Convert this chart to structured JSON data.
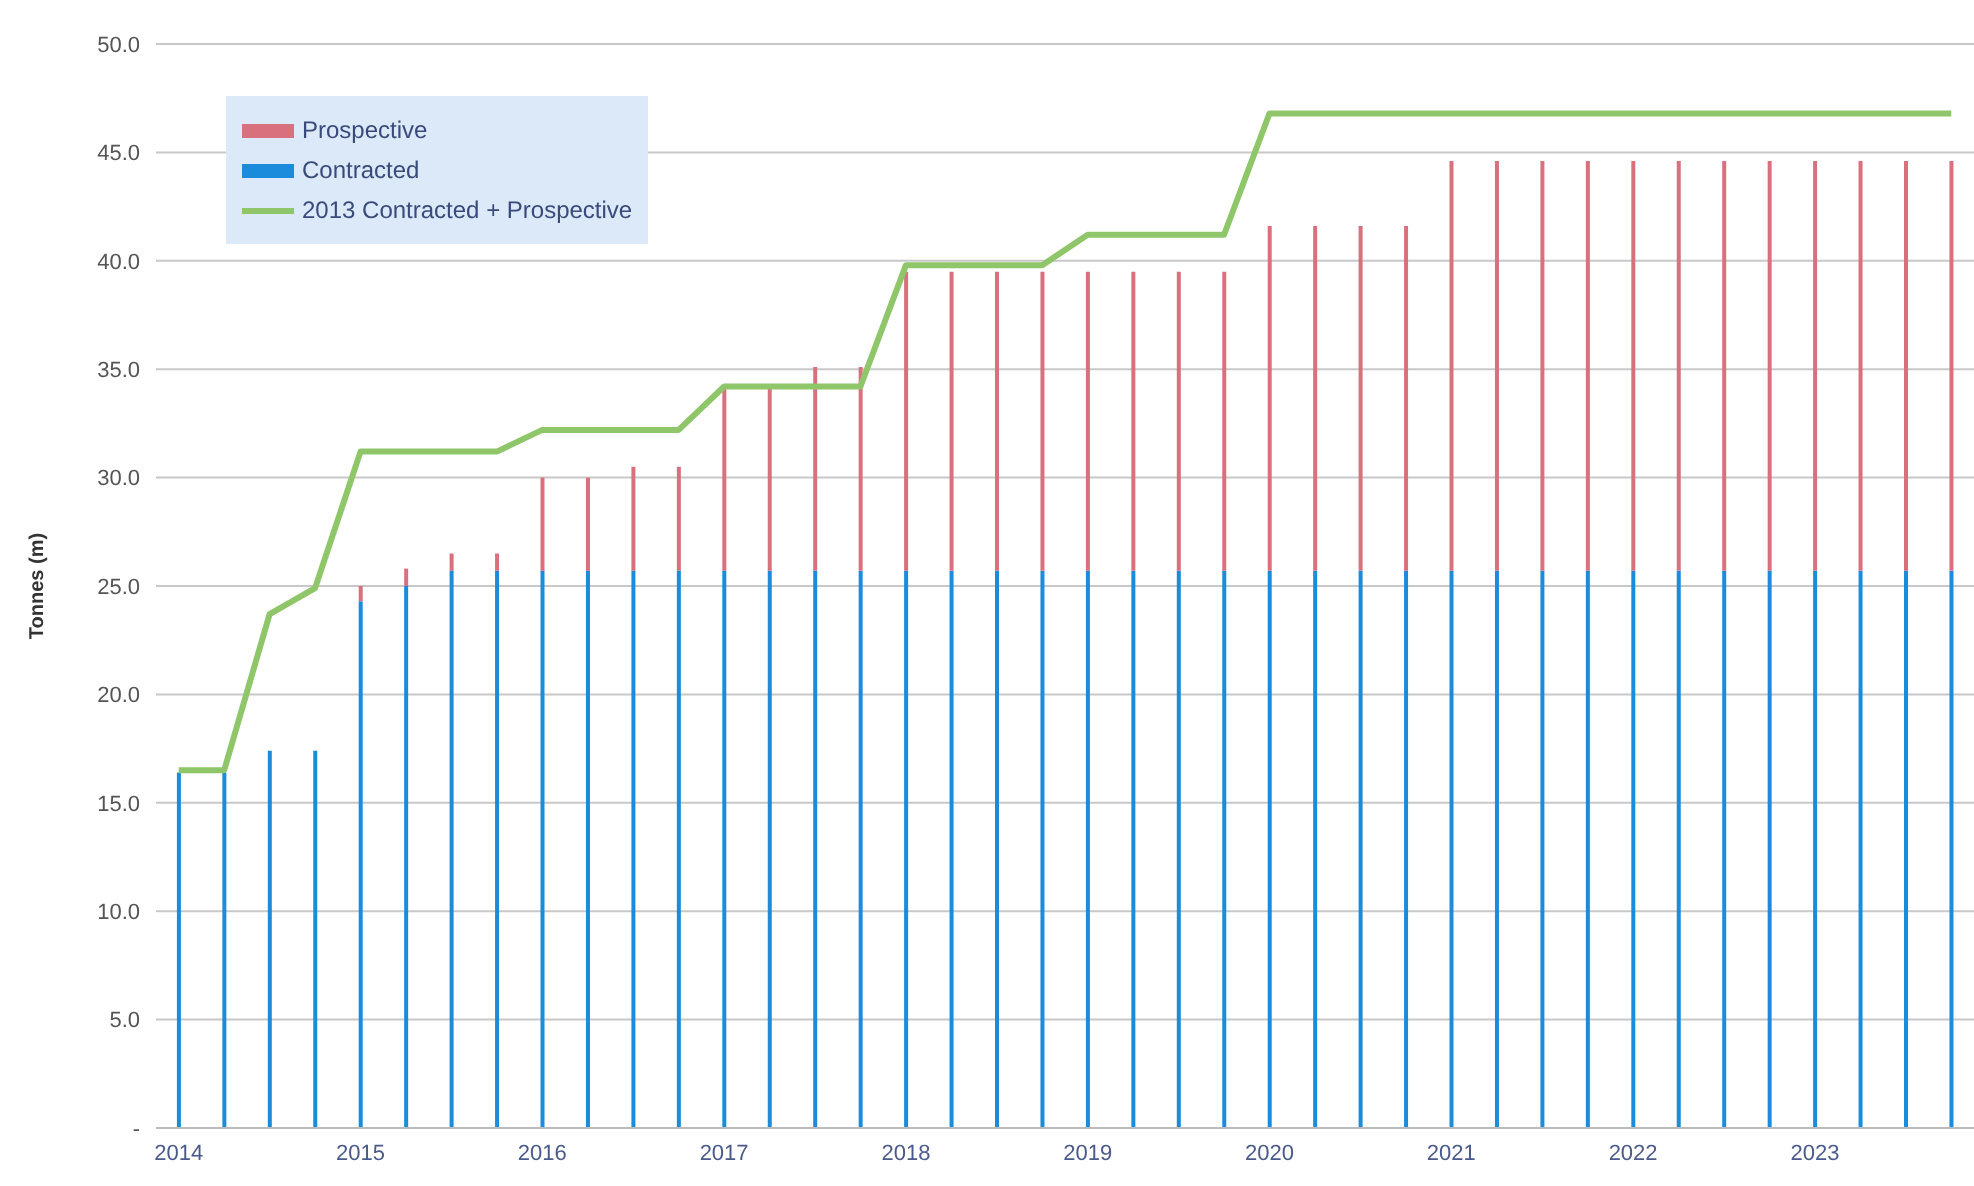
{
  "chart_data": {
    "type": "bar",
    "stacked": true,
    "ylabel": "Tonnes (m)",
    "categories": [
      "2014",
      null,
      null,
      null,
      "2015",
      null,
      null,
      null,
      "2016",
      null,
      null,
      null,
      "2017",
      null,
      null,
      null,
      "2018",
      null,
      null,
      null,
      "2019",
      null,
      null,
      null,
      "2020",
      null,
      null,
      null,
      "2021",
      null,
      null,
      null,
      "2022",
      null,
      null,
      null,
      "2023",
      null,
      null,
      null
    ],
    "series": [
      {
        "name": "Contracted",
        "color": "#1a8cdb",
        "values": [
          16.4,
          16.4,
          17.4,
          17.4,
          24.3,
          25.0,
          25.7,
          25.7,
          25.7,
          25.7,
          25.7,
          25.7,
          25.7,
          25.7,
          25.7,
          25.7,
          25.7,
          25.7,
          25.7,
          25.7,
          25.7,
          25.7,
          25.7,
          25.7,
          25.7,
          25.7,
          25.7,
          25.7,
          25.7,
          25.7,
          25.7,
          25.7,
          25.7,
          25.7,
          25.7,
          25.7,
          25.7,
          25.7,
          25.7,
          25.7
        ]
      },
      {
        "name": "Prospective",
        "color": "#d9707e",
        "values": [
          0,
          0,
          0,
          0,
          0.7,
          0.8,
          0.8,
          0.8,
          4.3,
          4.3,
          4.8,
          4.8,
          8.5,
          8.5,
          9.4,
          9.4,
          13.8,
          13.8,
          13.8,
          13.8,
          13.8,
          13.8,
          13.8,
          13.8,
          15.9,
          15.9,
          15.9,
          15.9,
          18.9,
          18.9,
          18.9,
          18.9,
          18.9,
          18.9,
          18.9,
          18.9,
          18.9,
          18.9,
          18.9,
          18.9
        ]
      },
      {
        "name": "2013 Contracted + Prospective",
        "type": "line",
        "color": "#8fc66a",
        "values": [
          16.5,
          16.5,
          23.7,
          24.9,
          31.2,
          31.2,
          31.2,
          31.2,
          32.2,
          32.2,
          32.2,
          32.2,
          34.2,
          34.2,
          34.2,
          34.2,
          39.8,
          39.8,
          39.8,
          39.8,
          41.2,
          41.2,
          41.2,
          41.2,
          46.8,
          46.8,
          46.8,
          46.8,
          46.8,
          46.8,
          46.8,
          46.8,
          46.8,
          46.8,
          46.8,
          46.8,
          46.8,
          46.8,
          46.8,
          46.8
        ]
      }
    ],
    "ylim": [
      0,
      50
    ],
    "yticks": [
      {
        "value": 0,
        "label": "-"
      },
      {
        "value": 5,
        "label": "5.0"
      },
      {
        "value": 10,
        "label": "10.0"
      },
      {
        "value": 15,
        "label": "15.0"
      },
      {
        "value": 20,
        "label": "20.0"
      },
      {
        "value": 25,
        "label": "25.0"
      },
      {
        "value": 30,
        "label": "30.0"
      },
      {
        "value": 35,
        "label": "35.0"
      },
      {
        "value": 40,
        "label": "40.0"
      },
      {
        "value": 45,
        "label": "45.0"
      },
      {
        "value": 50,
        "label": "50.0"
      }
    ],
    "grid": "y",
    "legend": "top left",
    "marker": "none",
    "line_style": "solid"
  }
}
